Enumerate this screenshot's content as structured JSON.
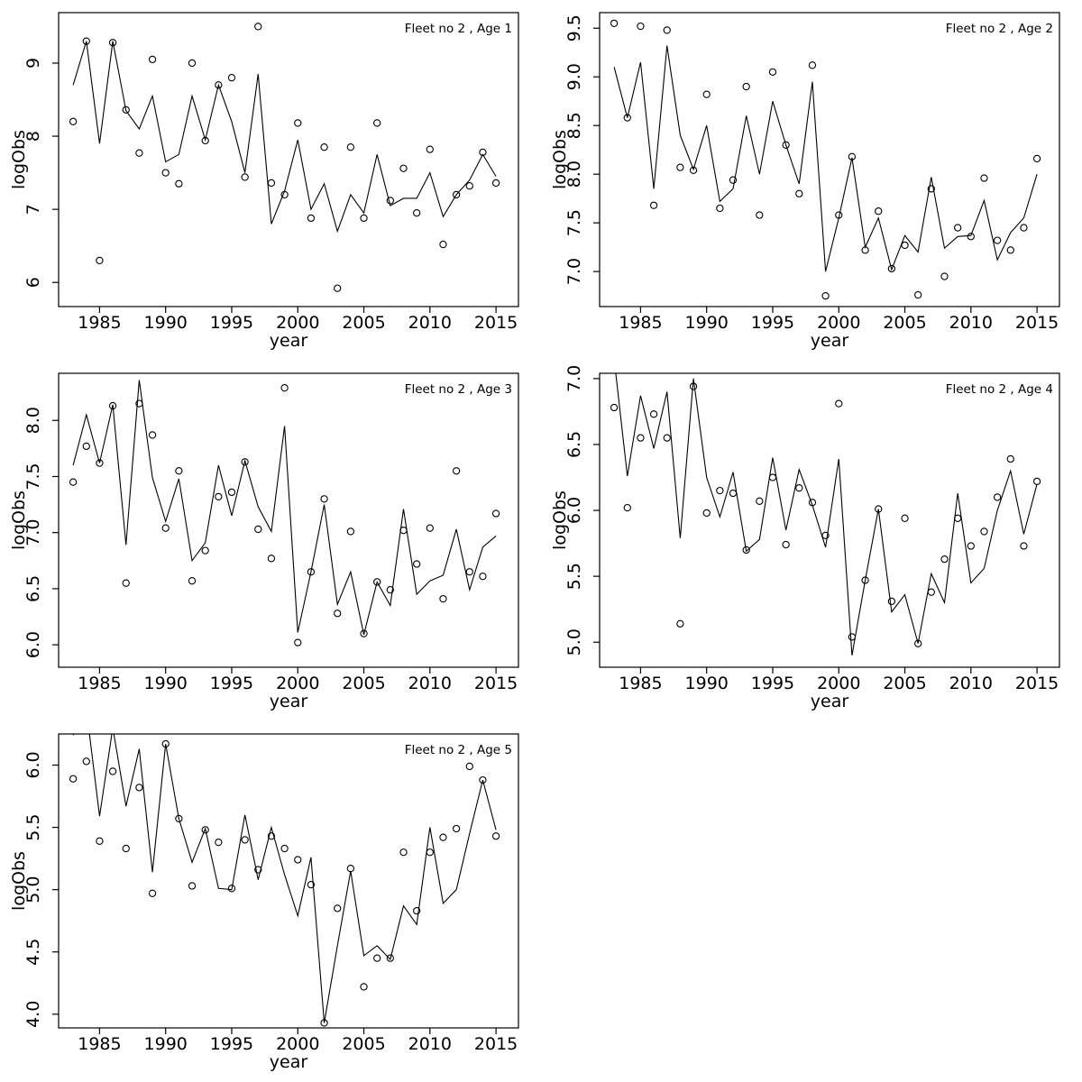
{
  "page": {
    "background": "#ffffff",
    "stroke_color": "#000000",
    "text_color": "#000000"
  },
  "chart_data": [
    {
      "type": "line",
      "title": "Fleet no 2 , Age 1",
      "xlabel": "year",
      "ylabel": "logObs",
      "grid": false,
      "legend": null,
      "xlim": [
        1981.9,
        2016.7
      ],
      "ylim": [
        5.67,
        9.69
      ],
      "xtick_values": [
        1985,
        1990,
        1995,
        2000,
        2005,
        2010,
        2015
      ],
      "xtick_labels": [
        "1985",
        "1990",
        "1995",
        "2000",
        "2005",
        "2010",
        "2015"
      ],
      "ytick_values": [
        6,
        7,
        8,
        9
      ],
      "ytick_labels": [
        "6",
        "7",
        "8",
        "9"
      ],
      "x": [
        1983,
        1984,
        1985,
        1986,
        1987,
        1988,
        1989,
        1990,
        1991,
        1992,
        1993,
        1994,
        1995,
        1996,
        1997,
        1998,
        1999,
        2000,
        2001,
        2002,
        2003,
        2004,
        2005,
        2006,
        2007,
        2008,
        2009,
        2010,
        2011,
        2012,
        2013,
        2014,
        2015
      ],
      "series": [
        {
          "name": "model-line",
          "style": "line",
          "values": [
            8.7,
            9.3,
            7.9,
            9.3,
            8.35,
            8.1,
            8.55,
            7.65,
            7.75,
            8.55,
            7.95,
            8.7,
            8.2,
            7.5,
            8.85,
            6.8,
            7.25,
            7.95,
            7.0,
            7.35,
            6.7,
            7.2,
            6.95,
            7.75,
            7.05,
            7.15,
            7.15,
            7.5,
            6.9,
            7.2,
            7.4,
            7.75,
            7.45
          ]
        },
        {
          "name": "observed-points",
          "style": "scatter",
          "values": [
            8.2,
            9.3,
            6.3,
            9.28,
            8.36,
            7.77,
            9.05,
            7.5,
            7.35,
            9.0,
            7.94,
            8.7,
            8.8,
            7.44,
            9.5,
            7.36,
            7.2,
            8.18,
            6.88,
            7.85,
            5.92,
            7.85,
            6.88,
            8.18,
            7.12,
            7.56,
            6.95,
            7.82,
            6.52,
            7.2,
            7.32,
            7.78,
            7.36
          ]
        }
      ]
    },
    {
      "type": "line",
      "title": "Fleet no 2 , Age 2",
      "xlabel": "year",
      "ylabel": "logObs",
      "grid": false,
      "legend": null,
      "xlim": [
        1981.9,
        2016.7
      ],
      "ylim": [
        6.64,
        9.66
      ],
      "xtick_values": [
        1985,
        1990,
        1995,
        2000,
        2005,
        2010,
        2015
      ],
      "xtick_labels": [
        "1985",
        "1990",
        "1995",
        "2000",
        "2005",
        "2010",
        "2015"
      ],
      "ytick_values": [
        7.0,
        7.5,
        8.0,
        8.5,
        9.0,
        9.5
      ],
      "ytick_labels": [
        "7.0",
        "7.5",
        "8.0",
        "8.5",
        "9.0",
        "9.5"
      ],
      "x": [
        1983,
        1984,
        1985,
        1986,
        1987,
        1988,
        1989,
        1990,
        1991,
        1992,
        1993,
        1994,
        1995,
        1996,
        1997,
        1998,
        1999,
        2000,
        2001,
        2002,
        2003,
        2004,
        2005,
        2006,
        2007,
        2008,
        2009,
        2010,
        2011,
        2012,
        2013,
        2014,
        2015
      ],
      "series": [
        {
          "name": "model-line",
          "style": "line",
          "values": [
            9.1,
            8.58,
            9.15,
            7.85,
            9.32,
            8.4,
            8.05,
            8.5,
            7.72,
            7.85,
            8.6,
            8.0,
            8.75,
            8.3,
            7.9,
            8.95,
            7.0,
            7.55,
            8.17,
            7.25,
            7.55,
            7.02,
            7.37,
            7.2,
            7.97,
            7.24,
            7.36,
            7.37,
            7.73,
            7.12,
            7.4,
            7.55,
            8.0
          ]
        },
        {
          "name": "observed-points",
          "style": "scatter",
          "values": [
            9.55,
            8.58,
            9.52,
            7.68,
            9.48,
            8.07,
            8.04,
            8.82,
            7.65,
            7.94,
            8.9,
            7.58,
            9.05,
            8.3,
            7.8,
            9.12,
            6.75,
            7.58,
            8.18,
            7.22,
            7.62,
            7.03,
            7.27,
            6.76,
            7.85,
            6.95,
            7.45,
            7.36,
            7.96,
            7.32,
            7.22,
            7.45,
            8.16
          ]
        }
      ]
    },
    {
      "type": "line",
      "title": "Fleet no 2 , Age 3",
      "xlabel": "year",
      "ylabel": "logObs",
      "grid": false,
      "legend": null,
      "xlim": [
        1981.9,
        2016.7
      ],
      "ylim": [
        5.8,
        8.42
      ],
      "xtick_values": [
        1985,
        1990,
        1995,
        2000,
        2005,
        2010,
        2015
      ],
      "xtick_labels": [
        "1985",
        "1990",
        "1995",
        "2000",
        "2005",
        "2010",
        "2015"
      ],
      "ytick_values": [
        6.0,
        6.5,
        7.0,
        7.5,
        8.0
      ],
      "ytick_labels": [
        "6.0",
        "6.5",
        "7.0",
        "7.5",
        "8.0"
      ],
      "x": [
        1983,
        1984,
        1985,
        1986,
        1987,
        1988,
        1989,
        1990,
        1991,
        1992,
        1993,
        1994,
        1995,
        1996,
        1997,
        1998,
        1999,
        2000,
        2001,
        2002,
        2003,
        2004,
        2005,
        2006,
        2007,
        2008,
        2009,
        2010,
        2011,
        2012,
        2013,
        2014,
        2015
      ],
      "series": [
        {
          "name": "model-line",
          "style": "line",
          "values": [
            7.6,
            8.05,
            7.62,
            8.14,
            6.89,
            8.36,
            7.49,
            7.1,
            7.48,
            6.75,
            6.91,
            7.6,
            7.15,
            7.64,
            7.23,
            7.01,
            7.95,
            6.11,
            6.65,
            7.25,
            6.36,
            6.65,
            6.09,
            6.56,
            6.35,
            7.21,
            6.45,
            6.57,
            6.62,
            7.03,
            6.49,
            6.87,
            6.97
          ]
        },
        {
          "name": "observed-points",
          "style": "scatter",
          "values": [
            7.45,
            7.77,
            7.62,
            8.13,
            6.55,
            8.15,
            7.87,
            7.04,
            7.55,
            6.57,
            6.84,
            7.32,
            7.36,
            7.63,
            7.03,
            6.77,
            8.29,
            6.02,
            6.65,
            7.3,
            6.28,
            7.01,
            6.1,
            6.56,
            6.49,
            7.02,
            6.72,
            7.04,
            6.41,
            7.55,
            6.65,
            6.61,
            7.17
          ]
        }
      ]
    },
    {
      "type": "line",
      "title": "Fleet no 2 , Age 4",
      "xlabel": "year",
      "ylabel": "logObs",
      "grid": false,
      "legend": null,
      "xlim": [
        1981.9,
        2016.7
      ],
      "ylim": [
        4.81,
        7.04
      ],
      "xtick_values": [
        1985,
        1990,
        1995,
        2000,
        2005,
        2010,
        2015
      ],
      "xtick_labels": [
        "1985",
        "1990",
        "1995",
        "2000",
        "2005",
        "2010",
        "2015"
      ],
      "ytick_values": [
        5.0,
        5.5,
        6.0,
        6.5,
        7.0
      ],
      "ytick_labels": [
        "5.0",
        "5.5",
        "6.0",
        "6.5",
        "7.0"
      ],
      "x": [
        1983,
        1984,
        1985,
        1986,
        1987,
        1988,
        1989,
        1990,
        1991,
        1992,
        1993,
        1994,
        1995,
        1996,
        1997,
        1998,
        1999,
        2000,
        2001,
        2002,
        2003,
        2004,
        2005,
        2006,
        2007,
        2008,
        2009,
        2010,
        2011,
        2012,
        2013,
        2014,
        2015
      ],
      "series": [
        {
          "name": "model-line",
          "style": "line",
          "values": [
            7.15,
            6.26,
            6.87,
            6.47,
            6.9,
            5.79,
            7.0,
            6.25,
            5.95,
            6.29,
            5.69,
            5.78,
            6.4,
            5.85,
            6.31,
            6.04,
            5.72,
            6.39,
            4.9,
            5.47,
            6.01,
            5.23,
            5.36,
            4.99,
            5.52,
            5.3,
            6.13,
            5.45,
            5.56,
            6.0,
            6.3,
            5.82,
            6.2
          ]
        },
        {
          "name": "observed-points",
          "style": "scatter",
          "values": [
            6.78,
            6.02,
            6.55,
            6.73,
            6.55,
            5.14,
            6.94,
            5.98,
            6.15,
            6.13,
            5.7,
            6.07,
            6.25,
            5.74,
            6.17,
            6.06,
            5.81,
            6.81,
            5.04,
            5.47,
            6.01,
            5.31,
            5.94,
            4.99,
            5.38,
            5.63,
            5.94,
            5.73,
            5.84,
            6.1,
            6.39,
            5.73,
            6.22
          ]
        }
      ]
    },
    {
      "type": "line",
      "title": "Fleet no 2 , Age 5",
      "xlabel": "year",
      "ylabel": "logObs",
      "grid": false,
      "legend": null,
      "xlim": [
        1981.9,
        2016.7
      ],
      "ylim": [
        3.89,
        6.25
      ],
      "xtick_values": [
        1985,
        1990,
        1995,
        2000,
        2005,
        2010,
        2015
      ],
      "xtick_labels": [
        "1985",
        "1990",
        "1995",
        "2000",
        "2005",
        "2010",
        "2015"
      ],
      "ytick_values": [
        4.0,
        4.5,
        5.0,
        5.5,
        6.0
      ],
      "ytick_labels": [
        "4.0",
        "4.5",
        "5.0",
        "5.5",
        "6.0"
      ],
      "x": [
        1983,
        1984,
        1985,
        1986,
        1987,
        1988,
        1989,
        1990,
        1991,
        1992,
        1993,
        1994,
        1995,
        1996,
        1997,
        1998,
        1999,
        2000,
        2001,
        2002,
        2003,
        2004,
        2005,
        2006,
        2007,
        2008,
        2009,
        2010,
        2011,
        2012,
        2013,
        2014,
        2015
      ],
      "series": [
        {
          "name": "model-line",
          "style": "line",
          "values": [
            6.24,
            6.45,
            5.59,
            6.3,
            5.67,
            6.13,
            5.14,
            6.17,
            5.57,
            5.22,
            5.49,
            5.01,
            5.0,
            5.6,
            5.08,
            5.5,
            5.12,
            4.79,
            5.26,
            3.93,
            4.55,
            5.15,
            4.47,
            4.55,
            4.44,
            4.87,
            4.72,
            5.5,
            4.89,
            5.0,
            5.45,
            5.88,
            5.48
          ]
        },
        {
          "name": "observed-points",
          "style": "scatter",
          "values": [
            5.89,
            6.03,
            5.39,
            5.95,
            5.33,
            5.82,
            4.97,
            6.17,
            5.57,
            5.03,
            5.48,
            5.38,
            5.01,
            5.4,
            5.16,
            5.43,
            5.33,
            5.24,
            5.04,
            3.93,
            4.85,
            5.17,
            4.22,
            4.45,
            4.45,
            5.3,
            4.83,
            5.3,
            5.42,
            5.49,
            5.99,
            5.88,
            5.43
          ]
        }
      ]
    }
  ]
}
